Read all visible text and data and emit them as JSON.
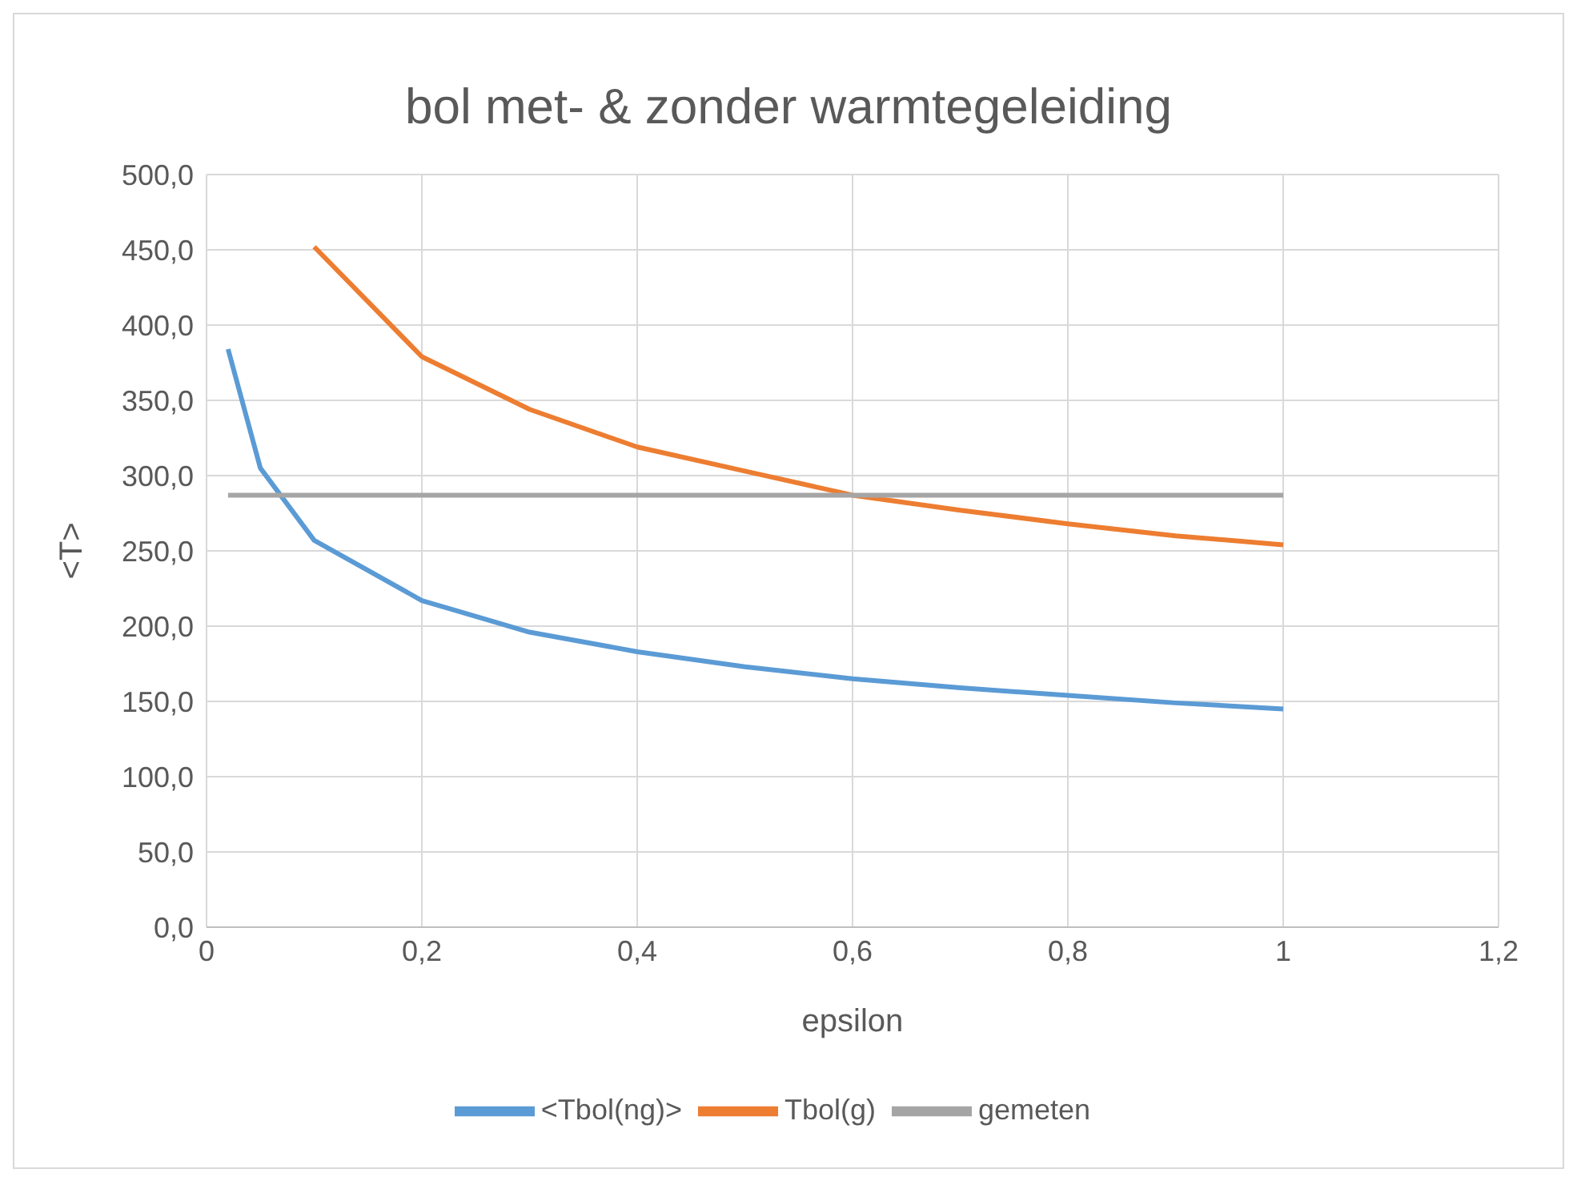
{
  "chart_data": {
    "type": "line",
    "title": "bol met- & zonder warmtegeleiding",
    "xlabel": "epsilon",
    "ylabel": "<T>",
    "xlim": [
      0,
      1.2
    ],
    "xticks": [
      0,
      {
        "value": 0.2,
        "label": "0,2"
      },
      {
        "value": 0.4,
        "label": "0,4"
      },
      {
        "value": 0.6,
        "label": "0,6"
      },
      {
        "value": 0.8,
        "label": "0,8"
      },
      1,
      {
        "value": 1.2,
        "label": "1,2"
      }
    ],
    "ylim": [
      0,
      500
    ],
    "yticks": [
      {
        "value": 0,
        "label": "0,0"
      },
      {
        "value": 50,
        "label": "50,0"
      },
      {
        "value": 100,
        "label": "100,0"
      },
      {
        "value": 150,
        "label": "150,0"
      },
      {
        "value": 200,
        "label": "200,0"
      },
      {
        "value": 250,
        "label": "250,0"
      },
      {
        "value": 300,
        "label": "300,0"
      },
      {
        "value": 350,
        "label": "350,0"
      },
      {
        "value": 400,
        "label": "400,0"
      },
      {
        "value": 450,
        "label": "450,0"
      },
      {
        "value": 500,
        "label": "500,0"
      }
    ],
    "grid": true,
    "legend": "bottom",
    "marker": "none",
    "line_style": "solid",
    "series": [
      {
        "name": "<Tbol(ng)>",
        "color": "#5b9bd5",
        "x": [
          0.02,
          0.05,
          0.1,
          0.2,
          0.3,
          0.4,
          0.5,
          0.6,
          0.7,
          0.8,
          0.9,
          1
        ],
        "values": [
          384,
          305,
          257,
          217,
          196,
          183,
          173,
          165,
          159,
          154,
          149,
          145
        ]
      },
      {
        "name": "Tbol(g)",
        "color": "#ed7d31",
        "x": [
          0.1,
          0.2,
          0.3,
          0.4,
          0.5,
          0.6,
          0.7,
          0.8,
          0.9,
          1
        ],
        "values": [
          452,
          379,
          344,
          319,
          303,
          287,
          277,
          268,
          260,
          254
        ]
      },
      {
        "name": "gemeten",
        "color": "#a5a5a5",
        "x": [
          0.02,
          1
        ],
        "values": [
          287,
          287
        ]
      }
    ]
  }
}
